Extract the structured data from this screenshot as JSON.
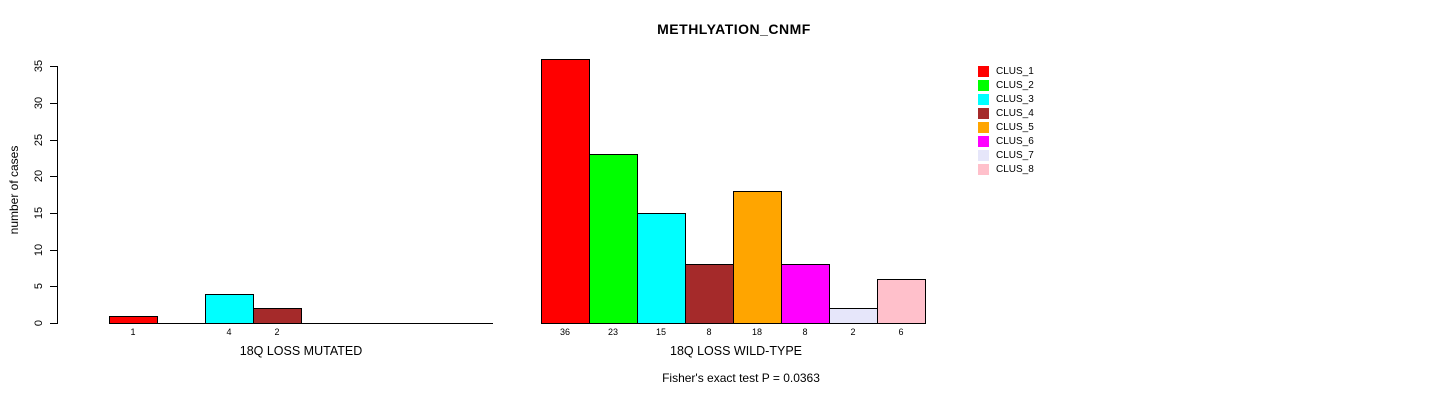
{
  "chart_data": {
    "type": "bar",
    "title": "METHLYATION_CNMF",
    "ylabel": "number of cases",
    "xlabel": "",
    "annotation": "Fisher's exact test P = 0.0363",
    "grid": false,
    "legend_position": "right",
    "y_ticks": [
      0,
      5,
      10,
      15,
      20,
      25,
      30,
      35
    ],
    "ylim": [
      0,
      36
    ],
    "categories": [
      "CLUS_1",
      "CLUS_2",
      "CLUS_3",
      "CLUS_4",
      "CLUS_5",
      "CLUS_6",
      "CLUS_7",
      "CLUS_8"
    ],
    "colors": [
      "#FF0000",
      "#00FF00",
      "#00FFFF",
      "#A52A2A",
      "#FFA500",
      "#FF00FF",
      "#E6E6FA",
      "#FFC0CB"
    ],
    "groups": [
      {
        "label": "18Q LOSS MUTATED",
        "values": [
          1,
          0,
          4,
          2,
          0,
          0,
          0,
          0
        ],
        "bar_labels": [
          "1",
          "",
          "4",
          "2",
          "",
          "",
          "",
          ""
        ]
      },
      {
        "label": "18Q LOSS WILD-TYPE",
        "values": [
          36,
          23,
          15,
          8,
          18,
          8,
          2,
          6
        ],
        "bar_labels": [
          "36",
          "23",
          "15",
          "8",
          "18",
          "8",
          "2",
          "6"
        ]
      }
    ],
    "legend": [
      "CLUS_1",
      "CLUS_2",
      "CLUS_3",
      "CLUS_4",
      "CLUS_5",
      "CLUS_6",
      "CLUS_7",
      "CLUS_8"
    ]
  }
}
